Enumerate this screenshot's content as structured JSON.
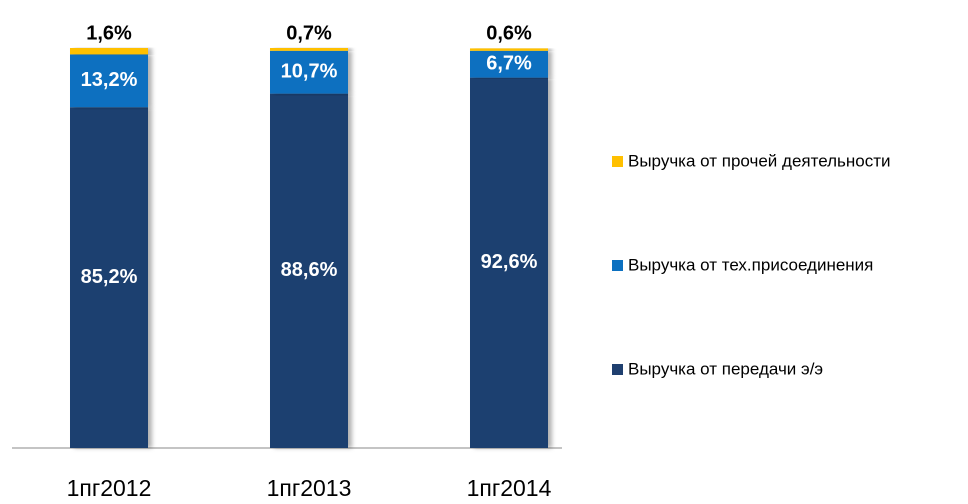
{
  "chart_data": {
    "type": "stacked-bar",
    "categories": [
      "1пг2012",
      "1пг2013",
      "1пг2014"
    ],
    "ylim": [
      0,
      100
    ],
    "series": [
      {
        "name": "Выручка от передачи э/э",
        "color": "#1f3f6f",
        "values": [
          85.2,
          88.6,
          92.6
        ],
        "value_labels": [
          "85,2%",
          "88,6%",
          "92,6%"
        ]
      },
      {
        "name": "Выручка от тех.присоединения",
        "color": "#0b70c0",
        "values": [
          13.2,
          10.7,
          6.7
        ],
        "value_labels": [
          "13,2%",
          "10,7%",
          "6,7%"
        ]
      },
      {
        "name": "Выручка от прочей деятельности",
        "color": "#ffc000",
        "values": [
          1.6,
          0.7,
          0.6
        ],
        "value_labels": [
          "1,6%",
          "0,7%",
          "0,6%"
        ]
      }
    ]
  }
}
